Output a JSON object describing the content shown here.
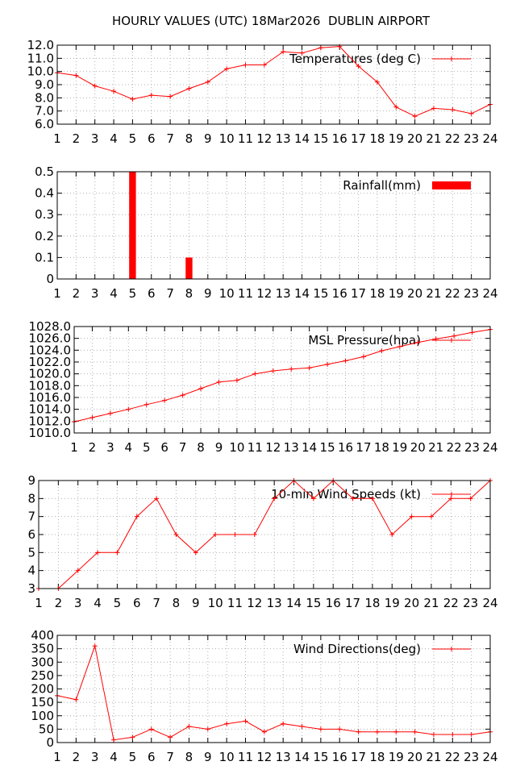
{
  "title": "HOURLY VALUES (UTC) 18Mar2026  DUBLIN AIRPORT",
  "colors": {
    "series": "#ff0000",
    "grid": "#b0b0b0",
    "axis": "#000000"
  },
  "chart_data": [
    {
      "type": "line",
      "legend": "Temperatures (deg C)",
      "legend_position": "top-right",
      "x": [
        1,
        2,
        3,
        4,
        5,
        6,
        7,
        8,
        9,
        10,
        11,
        12,
        13,
        14,
        15,
        16,
        17,
        18,
        19,
        20,
        21,
        22,
        23,
        24
      ],
      "values": [
        9.9,
        9.7,
        8.9,
        8.5,
        7.9,
        8.2,
        8.1,
        8.7,
        9.2,
        10.2,
        10.5,
        10.5,
        11.5,
        11.4,
        11.8,
        11.9,
        10.4,
        9.2,
        7.3,
        6.6,
        7.2,
        7.1,
        6.8,
        7.5
      ],
      "ylim": [
        6.0,
        12.0
      ],
      "yticks": [
        "6.0",
        "7.0",
        "8.0",
        "9.0",
        "10.0",
        "11.0",
        "12.0"
      ],
      "grid": true
    },
    {
      "type": "bar",
      "legend": "Rainfall(mm)",
      "legend_position": "top-right",
      "x": [
        1,
        2,
        3,
        4,
        5,
        6,
        7,
        8,
        9,
        10,
        11,
        12,
        13,
        14,
        15,
        16,
        17,
        18,
        19,
        20,
        21,
        22,
        23,
        24
      ],
      "values": [
        0,
        0,
        0,
        0,
        0.5,
        0,
        0,
        0.1,
        0,
        0,
        0,
        0,
        0,
        0,
        0,
        0,
        0,
        0,
        0,
        0,
        0,
        0,
        0,
        0
      ],
      "ylim": [
        0,
        0.5
      ],
      "yticks": [
        "0",
        "0.1",
        "0.2",
        "0.3",
        "0.4",
        "0.5"
      ],
      "grid": true
    },
    {
      "type": "line",
      "legend": "MSL Pressure(hpa)",
      "legend_position": "top-right",
      "x": [
        1,
        2,
        3,
        4,
        5,
        6,
        7,
        8,
        9,
        10,
        11,
        12,
        13,
        14,
        15,
        16,
        17,
        18,
        19,
        20,
        21,
        22,
        23,
        24
      ],
      "values": [
        1011.9,
        1012.6,
        1013.3,
        1014.0,
        1014.8,
        1015.5,
        1016.4,
        1017.5,
        1018.6,
        1018.9,
        1020.0,
        1020.5,
        1020.8,
        1021.0,
        1021.6,
        1022.2,
        1022.9,
        1023.9,
        1024.6,
        1025.3,
        1025.9,
        1026.4,
        1027.0,
        1027.5
      ],
      "ylim": [
        1010.0,
        1028.0
      ],
      "yticks": [
        "1010.0",
        "1012.0",
        "1014.0",
        "1016.0",
        "1018.0",
        "1020.0",
        "1022.0",
        "1024.0",
        "1026.0",
        "1028.0"
      ],
      "grid": true
    },
    {
      "type": "line",
      "legend": "10-min Wind Speeds (kt)",
      "legend_position": "top-right",
      "x": [
        1,
        2,
        3,
        4,
        5,
        6,
        7,
        8,
        9,
        10,
        11,
        12,
        13,
        14,
        15,
        16,
        17,
        18,
        19,
        20,
        21,
        22,
        23,
        24
      ],
      "values": [
        3,
        3,
        4,
        5,
        5,
        7,
        8,
        6,
        5,
        6,
        6,
        6,
        8,
        9,
        8,
        9,
        8,
        8,
        6,
        7,
        7,
        8,
        8,
        9
      ],
      "ylim": [
        3,
        9
      ],
      "yticks": [
        "3",
        "4",
        "5",
        "6",
        "7",
        "8",
        "9"
      ],
      "grid": true
    },
    {
      "type": "line",
      "legend": "Wind Directions(deg)",
      "legend_position": "top-right",
      "x": [
        1,
        2,
        3,
        4,
        5,
        6,
        7,
        8,
        9,
        10,
        11,
        12,
        13,
        14,
        15,
        16,
        17,
        18,
        19,
        20,
        21,
        22,
        23,
        24
      ],
      "values": [
        175,
        160,
        360,
        10,
        20,
        50,
        20,
        60,
        50,
        70,
        80,
        40,
        70,
        60,
        50,
        50,
        40,
        40,
        40,
        40,
        30,
        30,
        30,
        40
      ],
      "ylim": [
        0,
        400
      ],
      "yticks": [
        "0",
        "50",
        "100",
        "150",
        "200",
        "250",
        "300",
        "350",
        "400"
      ],
      "grid": true
    }
  ]
}
